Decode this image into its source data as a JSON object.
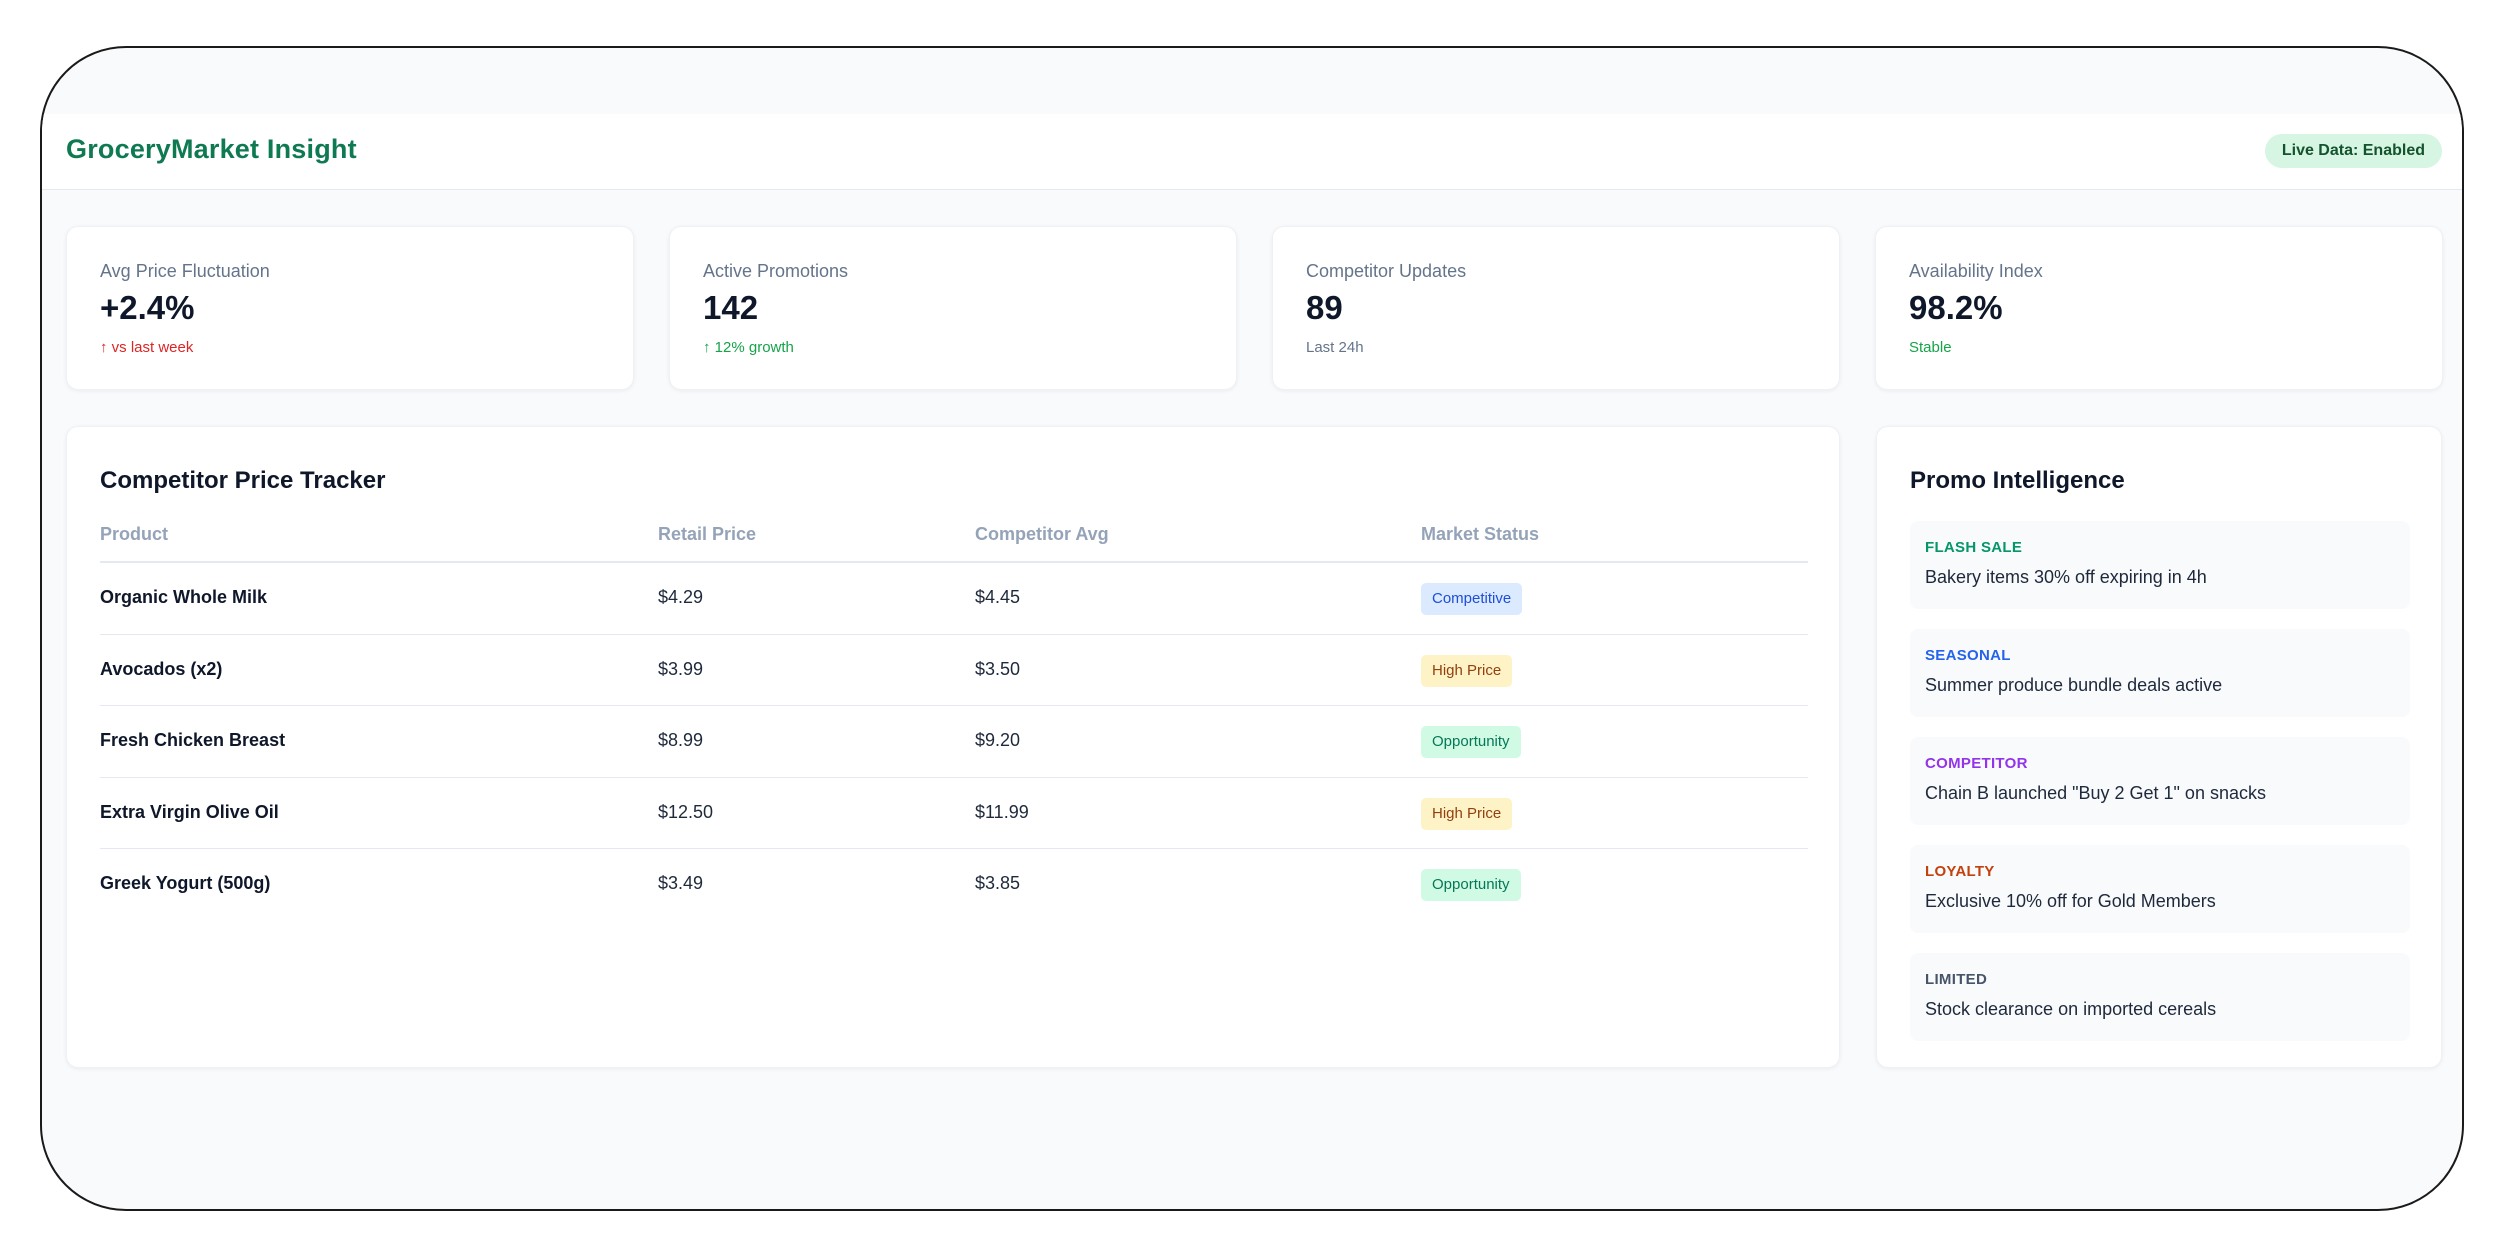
{
  "header": {
    "brand": "GroceryMarket Insight",
    "live_badge": "Live Data: Enabled"
  },
  "stats": [
    {
      "label": "Avg Price Fluctuation",
      "value": "+2.4%",
      "note": "↑ vs last week"
    },
    {
      "label": "Active Promotions",
      "value": "142",
      "note": "↑ 12% growth"
    },
    {
      "label": "Competitor Updates",
      "value": "89",
      "note": "Last 24h"
    },
    {
      "label": "Availability Index",
      "value": "98.2%",
      "note": "Stable"
    }
  ],
  "tracker": {
    "title": "Competitor Price Tracker",
    "columns": [
      "Product",
      "Retail Price",
      "Competitor Avg",
      "Market Status"
    ],
    "rows": [
      {
        "product": "Organic Whole Milk",
        "retail": "$4.29",
        "competitor": "$4.45",
        "status": "Competitive"
      },
      {
        "product": "Avocados (x2)",
        "retail": "$3.99",
        "competitor": "$3.50",
        "status": "High Price"
      },
      {
        "product": "Fresh Chicken Breast",
        "retail": "$8.99",
        "competitor": "$9.20",
        "status": "Opportunity"
      },
      {
        "product": "Extra Virgin Olive Oil",
        "retail": "$12.50",
        "competitor": "$11.99",
        "status": "High Price"
      },
      {
        "product": "Greek Yogurt (500g)",
        "retail": "$3.49",
        "competitor": "$3.85",
        "status": "Opportunity"
      }
    ]
  },
  "promo": {
    "title": "Promo Intelligence",
    "items": [
      {
        "tag": "FLASH SALE",
        "text": "Bakery items 30% off expiring in 4h"
      },
      {
        "tag": "SEASONAL",
        "text": "Summer produce bundle deals active"
      },
      {
        "tag": "COMPETITOR",
        "text": "Chain B launched \"Buy 2 Get 1\" on snacks"
      },
      {
        "tag": "LOYALTY",
        "text": "Exclusive 10% off for Gold Members"
      },
      {
        "tag": "LIMITED",
        "text": "Stock clearance on imported cereals"
      }
    ]
  },
  "colors": {
    "brand": "#0f7a52",
    "competitive": "#dbeafe",
    "high_price": "#fef3c7",
    "opportunity": "#d1fae5"
  }
}
